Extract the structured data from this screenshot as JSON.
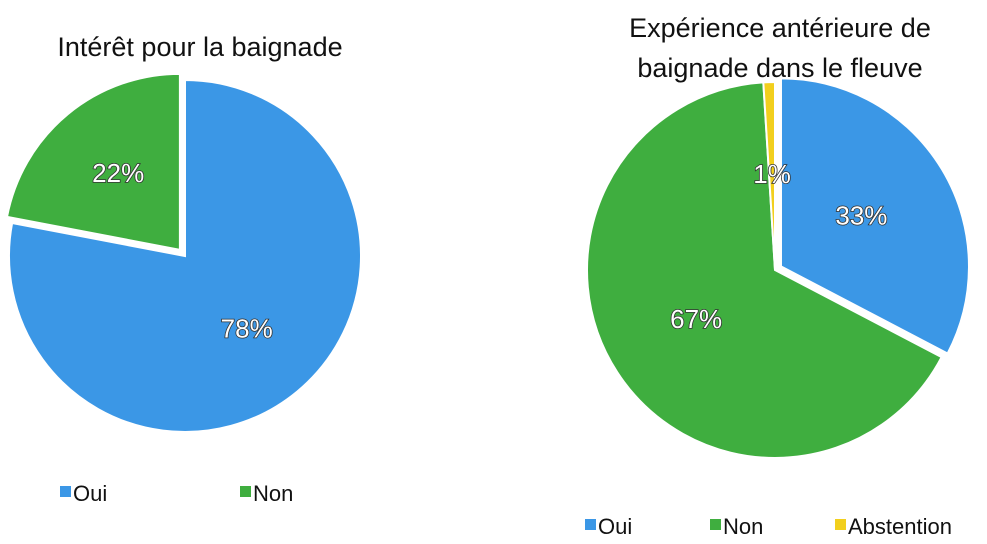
{
  "chart_data": [
    {
      "type": "pie",
      "title": "Intérêt pour la baignade",
      "categories": [
        "Oui",
        "Non"
      ],
      "values": [
        78,
        22
      ],
      "value_labels": [
        "78%",
        "22%"
      ],
      "colors": [
        "#3b97e6",
        "#3fae3f"
      ]
    },
    {
      "type": "pie",
      "title": "Expérience antérieure de baignade dans le fleuve",
      "categories": [
        "Oui",
        "Non",
        "Abstention"
      ],
      "values": [
        33,
        67,
        1
      ],
      "value_labels": [
        "33%",
        "67%",
        "1%"
      ],
      "colors": [
        "#3b97e6",
        "#3fae3f",
        "#f2cf1d"
      ]
    }
  ]
}
